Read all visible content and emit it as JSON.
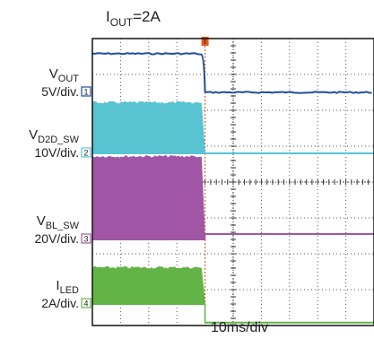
{
  "chart_data": {
    "type": "line",
    "title_main": "I",
    "title_sub": "OUT",
    "title_suffix": "=2A",
    "xlabel": "10ms/div",
    "grid": true,
    "divisions": {
      "x": 10,
      "y": 8
    },
    "trigger_marker": "T",
    "event_division": 4.0,
    "series": [
      {
        "main": "V",
        "sub": "OUT",
        "scale": "5V/div.",
        "marker": "1",
        "color": "#1f4e9e",
        "before_div": 7.58,
        "after_div": 6.5,
        "style": "level"
      },
      {
        "main": "V",
        "sub": "D2D_SW",
        "scale": "10V/div.",
        "marker": "2",
        "color": "#58c4d2",
        "low_div": 4.8,
        "high_div": 6.25,
        "after_div": 4.8,
        "style": "switching"
      },
      {
        "main": "V",
        "sub": "BL_SW",
        "scale": "20V/div.",
        "marker": "3",
        "color": "#a056a4",
        "low_div": 2.4,
        "high_div": 4.75,
        "after_div": 2.55,
        "style": "switching"
      },
      {
        "main": "I",
        "sub": "LED",
        "scale": "2A/div.",
        "marker": "4",
        "color": "#62b446",
        "low_div": 0.6,
        "high_div": 1.65,
        "after_div": 0.08,
        "style": "switching"
      }
    ]
  }
}
